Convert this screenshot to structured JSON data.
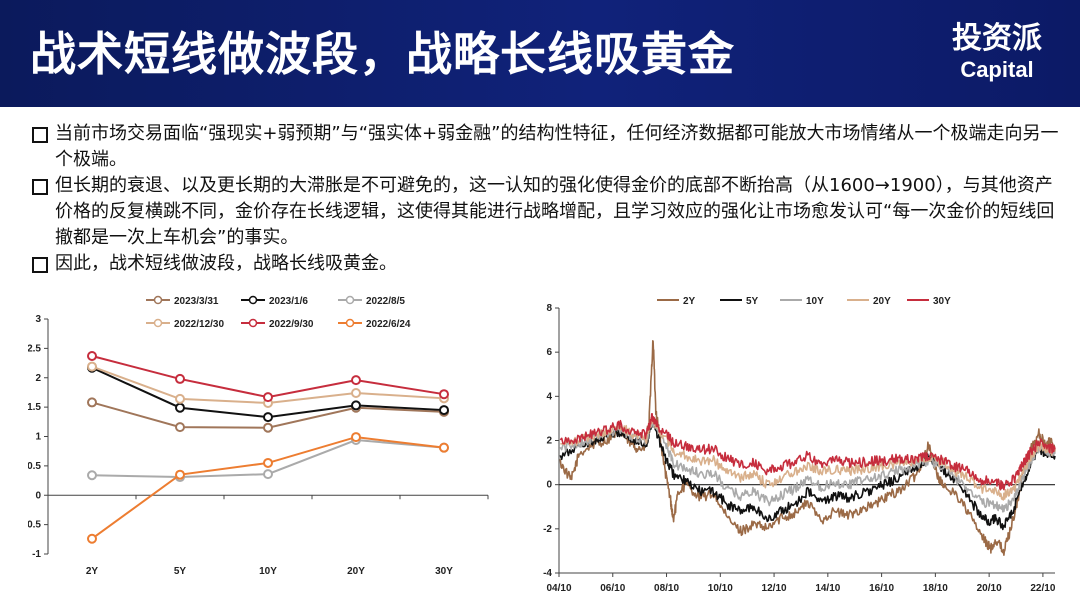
{
  "header": {
    "title": "战术短线做波段，战略长线吸黄金",
    "logo_cn": "投资派",
    "logo_en": "Capital"
  },
  "bullets": [
    "当前市场交易面临“强现实+弱预期”与“强实体+弱金融”的结构性特征，任何经济数据都可能放大市场情绪从一个极端走向另一个极端。",
    "但长期的衰退、以及更长期的大滞胀是不可避免的，这一认知的强化使得金价的底部不断抬高（从1600→1900），与其他资产价格的反复横跳不同，金价存在长线逻辑，这使得其能进行战略增配，且学习效应的强化让市场愈发认可“每一次金价的短线回撤都是一次上车机会”的事实。",
    "因此，战术短线做波段，战略长线吸黄金。"
  ],
  "chart_data": [
    {
      "type": "line",
      "categories": [
        "2Y",
        "5Y",
        "10Y",
        "20Y",
        "30Y"
      ],
      "ylim": [
        -1,
        3
      ],
      "yticks": [
        "-1",
        "-0.5",
        "0",
        "0.5",
        "1",
        "1.5",
        "2",
        "2.5",
        "3"
      ],
      "legend_position": "top",
      "grid": false,
      "series": [
        {
          "name": "2023/3/31",
          "color": "#a0765a",
          "values": [
            1.58,
            1.16,
            1.15,
            1.49,
            1.42
          ]
        },
        {
          "name": "2023/1/6",
          "color": "#111111",
          "values": [
            2.17,
            1.49,
            1.33,
            1.53,
            1.45
          ]
        },
        {
          "name": "2022/8/5",
          "color": "#aaaaaa",
          "values": [
            0.34,
            0.31,
            0.36,
            0.94,
            0.81
          ]
        },
        {
          "name": "2022/12/30",
          "color": "#d9b08c",
          "values": [
            2.19,
            1.64,
            1.57,
            1.74,
            1.65
          ]
        },
        {
          "name": "2022/9/30",
          "color": "#c62d3d",
          "values": [
            2.37,
            1.98,
            1.67,
            1.96,
            1.72
          ]
        },
        {
          "name": "2022/6/24",
          "color": "#ed7d31",
          "values": [
            -0.74,
            0.35,
            0.55,
            0.99,
            0.81
          ]
        }
      ]
    },
    {
      "type": "line",
      "x_ticks": [
        "04/10",
        "06/10",
        "08/10",
        "10/10",
        "12/10",
        "14/10",
        "16/10",
        "18/10",
        "20/10",
        "22/10"
      ],
      "x_range": [
        "2004-10",
        "2023-03"
      ],
      "ylim": [
        -4,
        8
      ],
      "yticks": [
        "-4",
        "-2",
        "0",
        "2",
        "4",
        "6",
        "8"
      ],
      "legend_position": "top",
      "grid": false,
      "series": [
        {
          "name": "2Y",
          "color": "#9b6a46",
          "points": [
            [
              2004.8,
              1.0
            ],
            [
              2005.2,
              0.2
            ],
            [
              2005.5,
              1.4
            ],
            [
              2006.0,
              1.8
            ],
            [
              2006.5,
              2.0
            ],
            [
              2007.0,
              2.5
            ],
            [
              2007.3,
              2.0
            ],
            [
              2007.6,
              1.7
            ],
            [
              2007.9,
              1.6
            ],
            [
              2008.1,
              2.8
            ],
            [
              2008.25,
              6.6
            ],
            [
              2008.35,
              3.4
            ],
            [
              2008.5,
              2.2
            ],
            [
              2008.7,
              0.6
            ],
            [
              2008.9,
              -0.7
            ],
            [
              2009.0,
              -1.6
            ],
            [
              2009.2,
              -0.3
            ],
            [
              2009.5,
              0.0
            ],
            [
              2010.0,
              -0.6
            ],
            [
              2010.5,
              -0.4
            ],
            [
              2011.0,
              -1.5
            ],
            [
              2011.5,
              -2.1
            ],
            [
              2012.0,
              -1.8
            ],
            [
              2012.5,
              -2.0
            ],
            [
              2013.0,
              -1.5
            ],
            [
              2013.5,
              -1.3
            ],
            [
              2014.0,
              -0.8
            ],
            [
              2014.5,
              -1.6
            ],
            [
              2015.0,
              -1.2
            ],
            [
              2015.5,
              -1.4
            ],
            [
              2016.0,
              -1.1
            ],
            [
              2016.5,
              -0.9
            ],
            [
              2017.0,
              -0.5
            ],
            [
              2017.5,
              -0.2
            ],
            [
              2018.0,
              0.4
            ],
            [
              2018.3,
              1.1
            ],
            [
              2018.5,
              1.8
            ],
            [
              2018.8,
              0.5
            ],
            [
              2019.0,
              0.0
            ],
            [
              2019.5,
              -0.4
            ],
            [
              2020.0,
              -1.3
            ],
            [
              2020.5,
              -2.4
            ],
            [
              2020.8,
              -2.9
            ],
            [
              2021.0,
              -2.5
            ],
            [
              2021.3,
              -3.0
            ],
            [
              2021.5,
              -2.2
            ],
            [
              2021.8,
              -0.8
            ],
            [
              2022.0,
              0.6
            ],
            [
              2022.3,
              1.6
            ],
            [
              2022.6,
              2.3
            ],
            [
              2022.9,
              1.7
            ],
            [
              2023.0,
              2.0
            ],
            [
              2023.2,
              1.6
            ]
          ]
        },
        {
          "name": "5Y",
          "color": "#111111",
          "points": [
            [
              2004.8,
              1.2
            ],
            [
              2005.5,
              1.8
            ],
            [
              2006.0,
              2.0
            ],
            [
              2006.5,
              2.2
            ],
            [
              2007.0,
              2.4
            ],
            [
              2007.5,
              2.0
            ],
            [
              2008.0,
              1.8
            ],
            [
              2008.2,
              2.9
            ],
            [
              2008.4,
              2.3
            ],
            [
              2008.7,
              1.2
            ],
            [
              2009.0,
              0.5
            ],
            [
              2009.5,
              0.1
            ],
            [
              2010.0,
              -0.3
            ],
            [
              2010.5,
              -0.3
            ],
            [
              2011.0,
              -0.9
            ],
            [
              2011.5,
              -1.2
            ],
            [
              2012.0,
              -1.0
            ],
            [
              2012.5,
              -1.6
            ],
            [
              2013.0,
              -1.2
            ],
            [
              2013.5,
              -0.9
            ],
            [
              2014.0,
              -0.3
            ],
            [
              2014.5,
              -0.8
            ],
            [
              2015.0,
              -0.5
            ],
            [
              2015.5,
              -0.6
            ],
            [
              2016.0,
              -0.4
            ],
            [
              2016.5,
              -0.2
            ],
            [
              2017.0,
              0.1
            ],
            [
              2017.5,
              0.4
            ],
            [
              2018.0,
              0.8
            ],
            [
              2018.5,
              1.2
            ],
            [
              2019.0,
              0.7
            ],
            [
              2019.5,
              0.2
            ],
            [
              2020.0,
              -0.6
            ],
            [
              2020.5,
              -1.5
            ],
            [
              2020.8,
              -1.7
            ],
            [
              2021.0,
              -1.5
            ],
            [
              2021.3,
              -1.9
            ],
            [
              2021.6,
              -1.3
            ],
            [
              2022.0,
              0.0
            ],
            [
              2022.3,
              0.9
            ],
            [
              2022.6,
              1.6
            ],
            [
              2022.9,
              1.4
            ],
            [
              2023.2,
              1.3
            ]
          ]
        },
        {
          "name": "10Y",
          "color": "#aaaaaa",
          "points": [
            [
              2004.8,
              1.6
            ],
            [
              2005.5,
              1.9
            ],
            [
              2006.0,
              2.1
            ],
            [
              2006.5,
              2.3
            ],
            [
              2007.0,
              2.5
            ],
            [
              2007.5,
              2.2
            ],
            [
              2008.0,
              2.0
            ],
            [
              2008.2,
              2.9
            ],
            [
              2008.4,
              2.5
            ],
            [
              2008.8,
              1.6
            ],
            [
              2009.0,
              1.0
            ],
            [
              2009.5,
              0.7
            ],
            [
              2010.0,
              0.5
            ],
            [
              2010.5,
              0.5
            ],
            [
              2011.0,
              -0.2
            ],
            [
              2011.5,
              -0.5
            ],
            [
              2012.0,
              -0.3
            ],
            [
              2012.5,
              -0.8
            ],
            [
              2013.0,
              -0.5
            ],
            [
              2013.5,
              -0.2
            ],
            [
              2014.0,
              0.3
            ],
            [
              2014.5,
              -0.1
            ],
            [
              2015.0,
              0.1
            ],
            [
              2015.5,
              0.0
            ],
            [
              2016.0,
              0.2
            ],
            [
              2016.5,
              0.3
            ],
            [
              2017.0,
              0.5
            ],
            [
              2017.5,
              0.7
            ],
            [
              2018.0,
              0.9
            ],
            [
              2018.5,
              1.1
            ],
            [
              2019.0,
              0.8
            ],
            [
              2019.5,
              0.3
            ],
            [
              2020.0,
              -0.2
            ],
            [
              2020.5,
              -0.8
            ],
            [
              2021.0,
              -0.9
            ],
            [
              2021.3,
              -1.1
            ],
            [
              2021.7,
              -0.6
            ],
            [
              2022.0,
              0.3
            ],
            [
              2022.3,
              1.1
            ],
            [
              2022.6,
              1.7
            ],
            [
              2022.9,
              1.5
            ],
            [
              2023.2,
              1.4
            ]
          ]
        },
        {
          "name": "20Y",
          "color": "#d9b08c",
          "points": [
            [
              2004.8,
              1.8
            ],
            [
              2005.5,
              2.0
            ],
            [
              2006.0,
              2.2
            ],
            [
              2006.5,
              2.4
            ],
            [
              2007.0,
              2.6
            ],
            [
              2007.5,
              2.3
            ],
            [
              2008.0,
              2.1
            ],
            [
              2008.2,
              3.0
            ],
            [
              2008.4,
              2.6
            ],
            [
              2008.8,
              2.0
            ],
            [
              2009.0,
              1.5
            ],
            [
              2009.5,
              1.3
            ],
            [
              2010.0,
              1.1
            ],
            [
              2010.5,
              1.1
            ],
            [
              2011.0,
              0.6
            ],
            [
              2011.5,
              0.3
            ],
            [
              2012.0,
              0.5
            ],
            [
              2012.5,
              0.0
            ],
            [
              2013.0,
              0.3
            ],
            [
              2013.5,
              0.6
            ],
            [
              2014.0,
              0.9
            ],
            [
              2014.5,
              0.6
            ],
            [
              2015.0,
              0.7
            ],
            [
              2015.5,
              0.6
            ],
            [
              2016.0,
              0.7
            ],
            [
              2016.5,
              0.8
            ],
            [
              2017.0,
              0.9
            ],
            [
              2017.5,
              1.0
            ],
            [
              2018.0,
              1.1
            ],
            [
              2018.5,
              1.2
            ],
            [
              2019.0,
              1.0
            ],
            [
              2019.5,
              0.6
            ],
            [
              2020.0,
              0.3
            ],
            [
              2020.5,
              -0.2
            ],
            [
              2021.0,
              -0.3
            ],
            [
              2021.3,
              -0.5
            ],
            [
              2021.7,
              -0.1
            ],
            [
              2022.0,
              0.6
            ],
            [
              2022.3,
              1.3
            ],
            [
              2022.6,
              1.8
            ],
            [
              2022.9,
              1.6
            ],
            [
              2023.2,
              1.5
            ]
          ]
        },
        {
          "name": "30Y",
          "color": "#c62d3d",
          "points": [
            [
              2004.8,
              2.0
            ],
            [
              2005.5,
              2.1
            ],
            [
              2006.0,
              2.3
            ],
            [
              2006.5,
              2.5
            ],
            [
              2007.0,
              2.7
            ],
            [
              2007.5,
              2.4
            ],
            [
              2008.0,
              2.3
            ],
            [
              2008.2,
              3.1
            ],
            [
              2008.4,
              2.7
            ],
            [
              2008.8,
              2.2
            ],
            [
              2009.0,
              1.9
            ],
            [
              2009.5,
              1.7
            ],
            [
              2010.0,
              1.6
            ],
            [
              2010.5,
              1.6
            ],
            [
              2011.0,
              1.2
            ],
            [
              2011.5,
              0.9
            ],
            [
              2012.0,
              1.0
            ],
            [
              2012.5,
              0.6
            ],
            [
              2013.0,
              0.8
            ],
            [
              2013.5,
              1.0
            ],
            [
              2014.0,
              1.3
            ],
            [
              2014.5,
              1.0
            ],
            [
              2015.0,
              1.1
            ],
            [
              2015.5,
              1.0
            ],
            [
              2016.0,
              1.0
            ],
            [
              2016.5,
              1.1
            ],
            [
              2017.0,
              1.1
            ],
            [
              2017.5,
              1.2
            ],
            [
              2018.0,
              1.2
            ],
            [
              2018.5,
              1.3
            ],
            [
              2019.0,
              1.1
            ],
            [
              2019.5,
              0.8
            ],
            [
              2020.0,
              0.6
            ],
            [
              2020.5,
              0.2
            ],
            [
              2021.0,
              0.1
            ],
            [
              2021.3,
              -0.1
            ],
            [
              2021.7,
              0.3
            ],
            [
              2022.0,
              0.9
            ],
            [
              2022.3,
              1.5
            ],
            [
              2022.6,
              1.9
            ],
            [
              2022.9,
              1.7
            ],
            [
              2023.2,
              1.6
            ]
          ]
        }
      ]
    }
  ]
}
